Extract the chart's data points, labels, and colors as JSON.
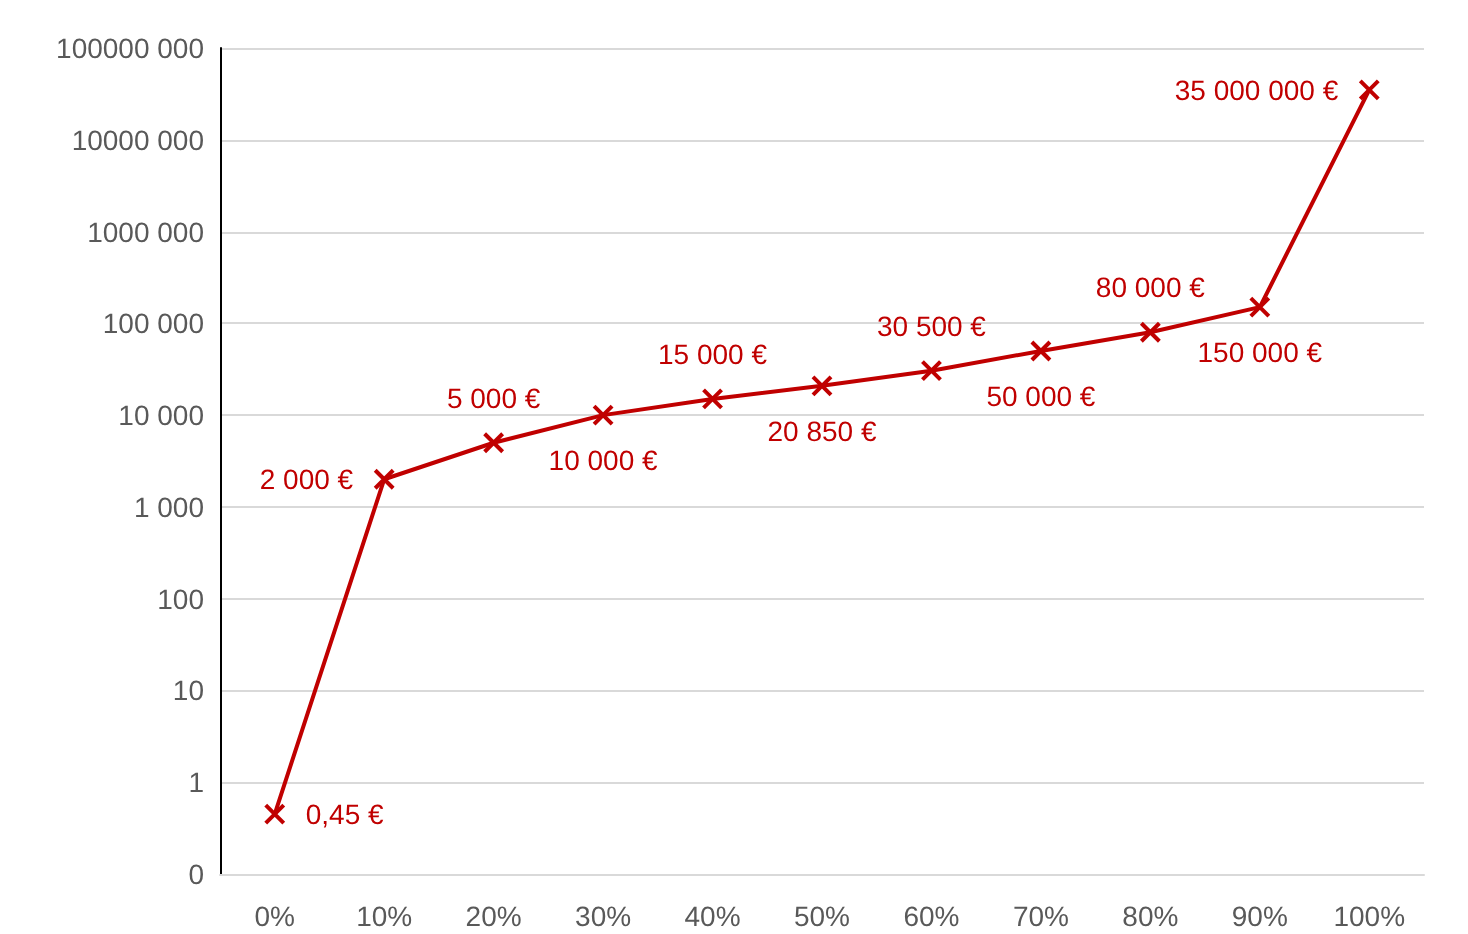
{
  "chart_data": {
    "type": "line",
    "categories": [
      "0%",
      "10%",
      "20%",
      "30%",
      "40%",
      "50%",
      "60%",
      "70%",
      "80%",
      "90%",
      "100%"
    ],
    "series": [
      {
        "color": "#c00000",
        "values": [
          0.45,
          2000,
          5000,
          10000,
          15000,
          20850,
          30500,
          50000,
          80000,
          150000,
          35000000
        ],
        "value_labels": [
          "0,45 €",
          "2 000 €",
          "5 000 €",
          "10 000 €",
          "15 000 €",
          "20 850 €",
          "30 500 €",
          "50 000 €",
          "80 000 €",
          "150 000 €",
          "35 000 000 €"
        ]
      }
    ],
    "log": "y",
    "ylim": [
      0.1,
      100000000
    ],
    "yticks": [
      {
        "value": 0.1,
        "label": "0"
      },
      1,
      10,
      100,
      {
        "value": 1000,
        "label": "1 000"
      },
      {
        "value": 10000,
        "label": "10 000"
      },
      {
        "value": 100000,
        "label": "100 000"
      },
      {
        "value": 1000000,
        "label": "1000 000"
      },
      {
        "value": 10000000,
        "label": "10000 000"
      },
      {
        "value": 100000000,
        "label": "100000 000"
      }
    ],
    "grid": "y",
    "marker": "cross",
    "line_style": "solid"
  }
}
